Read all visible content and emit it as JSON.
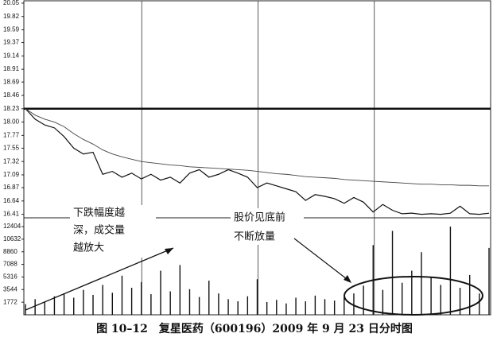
{
  "chart_data": {
    "type": "intraday",
    "caption": "图 10–12　复星医药（600196）2009 年 9 月 23 日分时图",
    "annotations": [
      {
        "lines": [
          "下跌幅度越",
          "深，成交量",
          "越放大"
        ]
      },
      {
        "lines": [
          "股价见底前",
          "不断放量"
        ]
      }
    ],
    "xlim": [
      0,
      240
    ],
    "x": [
      0,
      5,
      10,
      15,
      20,
      25,
      30,
      35,
      40,
      45,
      50,
      55,
      60,
      65,
      70,
      75,
      80,
      85,
      90,
      95,
      100,
      105,
      110,
      115,
      120,
      125,
      130,
      135,
      140,
      145,
      150,
      155,
      160,
      165,
      170,
      175,
      180,
      185,
      190,
      195,
      200,
      205,
      210,
      215,
      220,
      225,
      230,
      235,
      240
    ],
    "ylim": [
      16.35,
      20.09
    ],
    "yticks": [
      20.05,
      19.82,
      19.59,
      19.37,
      19.14,
      18.91,
      18.69,
      18.46,
      18.23,
      {
        "value": 18,
        "label": "18.00"
      },
      17.77,
      17.55,
      17.32,
      17.09,
      16.87,
      16.64,
      16.41
    ],
    "prev_close": 18.23,
    "y2lim": [
      0,
      13300
    ],
    "y2ticks": [
      12404,
      10632,
      8860,
      7088,
      5316,
      3544,
      1772
    ],
    "series": [
      {
        "name": "price",
        "kind": "line",
        "color": "#111111",
        "values": [
          18.23,
          18.05,
          17.95,
          17.9,
          17.75,
          17.55,
          17.45,
          17.48,
          17.1,
          17.15,
          17.05,
          17.12,
          17.02,
          17.1,
          17.0,
          17.05,
          16.95,
          17.12,
          17.18,
          17.05,
          17.1,
          17.18,
          17.12,
          17.05,
          16.87,
          16.95,
          16.9,
          16.85,
          16.8,
          16.65,
          16.75,
          16.72,
          16.68,
          16.6,
          16.7,
          16.62,
          16.45,
          16.58,
          16.48,
          16.42,
          16.43,
          16.41,
          16.42,
          16.41,
          16.43,
          16.55,
          16.42,
          16.41,
          16.43
        ]
      },
      {
        "name": "average",
        "kind": "line",
        "color": "#444444",
        "values": [
          18.23,
          18.12,
          18.05,
          18.0,
          17.92,
          17.8,
          17.7,
          17.62,
          17.52,
          17.45,
          17.4,
          17.36,
          17.32,
          17.3,
          17.28,
          17.26,
          17.25,
          17.23,
          17.22,
          17.21,
          17.2,
          17.19,
          17.18,
          17.17,
          17.15,
          17.13,
          17.11,
          17.1,
          17.08,
          17.06,
          17.05,
          17.04,
          17.03,
          17.01,
          17.0,
          16.99,
          16.98,
          16.97,
          16.96,
          16.95,
          16.94,
          16.93,
          16.93,
          16.92,
          16.92,
          16.91,
          16.91,
          16.9,
          16.9
        ]
      },
      {
        "name": "volume",
        "kind": "bar",
        "axis": "y2",
        "color": "#111111",
        "values": [
          1500,
          2200,
          1800,
          2600,
          3000,
          2400,
          3500,
          2800,
          4200,
          3100,
          5500,
          3800,
          4600,
          2900,
          6200,
          3300,
          7000,
          3600,
          2500,
          4800,
          3000,
          2200,
          1900,
          2600,
          5000,
          1800,
          2100,
          1600,
          2400,
          1900,
          2700,
          2200,
          2000,
          2500,
          3000,
          4100,
          9800,
          3500,
          11800,
          4500,
          6200,
          8800,
          5200,
          4200,
          12400,
          3800,
          5600,
          3000,
          9400
        ]
      }
    ]
  }
}
